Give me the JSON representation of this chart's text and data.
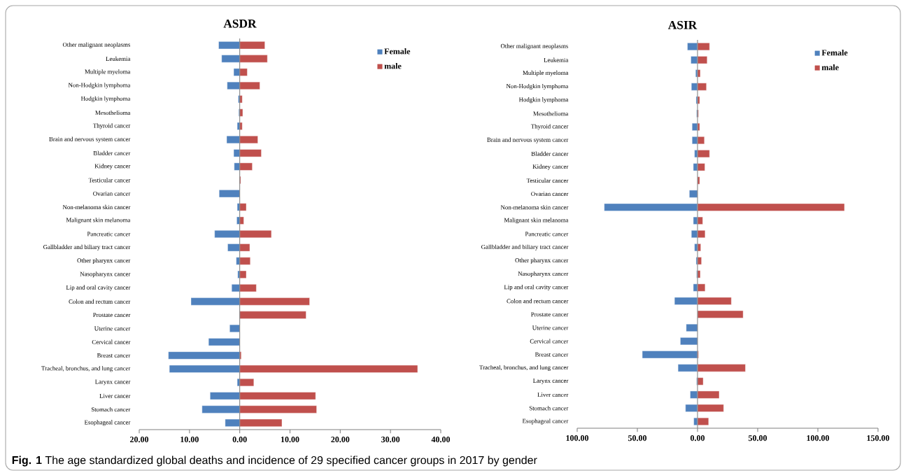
{
  "chart_data": [
    {
      "type": "bar",
      "orientation": "horizontal",
      "title": "ASDR",
      "categories": [
        "Other malignant neoplasms",
        "Leukemia",
        "Multiple myeloma",
        "Non-Hodgkin lymphoma",
        "Hodgkin lymphoma",
        "Mesothelioma",
        "Thyroid cancer",
        "Brain and nervous system cancer",
        "Bladder cancer",
        "Kidney cancer",
        "Testicular cancer",
        "Ovarian cancer",
        "Non-melanoma skin cancer",
        "Malignant skin melanoma",
        "Pancreatic cancer",
        "Gallbladder and biliary tract cancer",
        "Other pharynx cancer",
        "Nasopharynx cancer",
        "Lip and oral cavity cancer",
        "Colon and rectum cancer",
        "Prostate cancer",
        "Uterine cancer",
        "Cervical cancer",
        "Breast cancer",
        "Tracheal, bronchus, and lung cancer",
        "Larynx cancer",
        "Liver cancer",
        "Stomach cancer",
        "Esophageal cancer"
      ],
      "series": [
        {
          "name": "Female",
          "color": "#4f81bd",
          "values": [
            -4.2,
            -3.6,
            -1.2,
            -2.5,
            -0.3,
            -0.2,
            -0.5,
            -2.6,
            -1.2,
            -1.1,
            null,
            -4.1,
            -0.5,
            -0.6,
            -5.0,
            -2.4,
            -0.7,
            -0.4,
            -1.6,
            -9.7,
            null,
            -2.0,
            -6.2,
            -14.2,
            -14.0,
            -0.5,
            -5.9,
            -7.5,
            -2.9
          ]
        },
        {
          "name": "male",
          "color": "#c0504d",
          "values": [
            5.0,
            5.5,
            1.5,
            4.0,
            0.5,
            0.6,
            0.5,
            3.6,
            4.3,
            2.5,
            0.2,
            null,
            1.3,
            0.8,
            6.3,
            2.0,
            2.1,
            1.3,
            3.3,
            13.9,
            13.2,
            null,
            null,
            0.3,
            35.4,
            2.8,
            15.1,
            15.3,
            8.4
          ]
        }
      ],
      "xlim": [
        -20,
        40
      ],
      "xticks": [
        {
          "value": -20,
          "label": "20.00"
        },
        {
          "value": -10,
          "label": "10.00"
        },
        {
          "value": 0,
          "label": "0.00"
        },
        {
          "value": 10,
          "label": "10.00"
        },
        {
          "value": 20,
          "label": "20.00"
        },
        {
          "value": 30,
          "label": "30.00"
        },
        {
          "value": 40,
          "label": "40.00"
        }
      ],
      "stacked": true,
      "legend": "top right",
      "annotations": [
        "**Fig. 1** The age standardized global deaths and incidence of 29 specified cancer groups in 2017 by gender"
      ]
    },
    {
      "type": "bar",
      "orientation": "horizontal",
      "title": "ASIR",
      "categories": [
        "Other malignant neoplasms",
        "Leukemia",
        "Multiple myeloma",
        "Non-Hodgkin lymphoma",
        "Hodgkin lymphoma",
        "Mesothelioma",
        "Thyroid cancer",
        "Brain and nervous system cancer",
        "Bladder cancer",
        "Kidney cancer",
        "Testicular cancer",
        "Ovarian cancer",
        "Non-melanoma skin cancer",
        "Malignant skin melanoma",
        "Pancreatic cancer",
        "Gallbladder and biliary tract cancer",
        "Other pharynx cancer",
        "Nasopharynx cancer",
        "Lip and oral cavity cancer",
        "Colon and rectum cancer",
        "Prostate cancer",
        "Uterine cancer",
        "Cervical cancer",
        "Breast cancer",
        "Tracheal, bronchus, and lung cancer",
        "Larynx cancer",
        "Liver cancer",
        "Stomach cancer",
        "Esophageal cancer"
      ],
      "series": [
        {
          "name": "Female",
          "color": "#4f81bd",
          "values": [
            -8.4,
            -5.5,
            -1.6,
            -5.1,
            -1.2,
            -0.8,
            -4.5,
            -4.5,
            -2.5,
            -3.5,
            null,
            -6.8,
            -77.5,
            -3.5,
            -5.1,
            -2.5,
            -1.2,
            -0.8,
            -3.5,
            -19.1,
            null,
            -9.4,
            -14.3,
            -45.9,
            -16.2,
            -0.8,
            -6.1,
            -10.0,
            -3.1
          ]
        },
        {
          "name": "male",
          "color": "#c0504d",
          "values": [
            10.0,
            8.0,
            2.3,
            7.4,
            1.8,
            0.8,
            1.8,
            5.7,
            10.0,
            6.1,
            1.8,
            null,
            122.1,
            4.3,
            6.3,
            2.7,
            3.3,
            2.3,
            6.3,
            28.1,
            37.9,
            null,
            null,
            0.8,
            39.8,
            4.7,
            18.0,
            21.7,
            9.2
          ]
        }
      ],
      "xlim": [
        -100,
        150
      ],
      "xticks": [
        {
          "value": -100,
          "label": "100.00"
        },
        {
          "value": -50,
          "label": "50.00"
        },
        {
          "value": 0,
          "label": "0.00"
        },
        {
          "value": 50,
          "label": "50.00"
        },
        {
          "value": 100,
          "label": "100.00"
        },
        {
          "value": 150,
          "label": "150.00"
        }
      ],
      "stacked": true,
      "legend": "top right"
    }
  ]
}
